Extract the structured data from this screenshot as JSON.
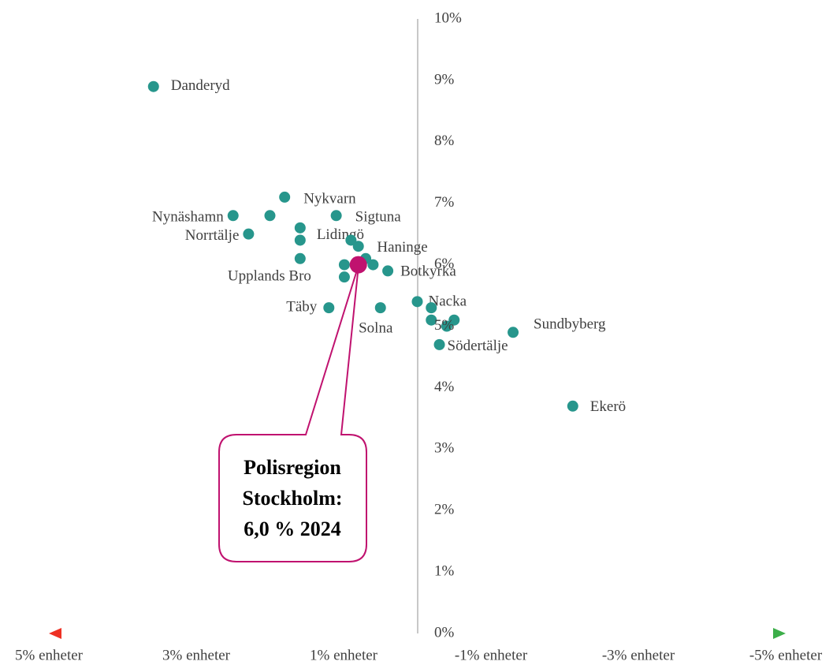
{
  "chart_data": {
    "type": "scatter",
    "names": [
      "Danderyd",
      "Nynäshamn",
      null,
      "Nykvarn",
      "Norrtälje",
      null,
      "Lidingö",
      "Sigtuna",
      null,
      "Haninge",
      null,
      null,
      "Upplands Bro",
      null,
      null,
      "Botkyrka",
      "Täby",
      "Solna",
      "Nacka",
      null,
      null,
      null,
      null,
      "Sundbyberg",
      "Södertälje",
      "Ekerö"
    ],
    "x": [
      3.58,
      2.5,
      2.0,
      1.8,
      2.29,
      1.59,
      1.59,
      1.1,
      0.8,
      0.9,
      1.59,
      0.99,
      0.99,
      0.7,
      0.6,
      0.4,
      1.2,
      0.5,
      0.0,
      -0.19,
      -0.19,
      -0.4,
      -0.5,
      -1.3,
      -0.3,
      -2.11
    ],
    "y": [
      8.9,
      6.8,
      6.8,
      7.1,
      6.5,
      6.6,
      6.4,
      6.8,
      6.3,
      6.4,
      6.1,
      6.0,
      5.8,
      6.1,
      6.0,
      5.9,
      5.3,
      5.3,
      5.4,
      5.3,
      5.1,
      5.0,
      5.1,
      4.9,
      4.7,
      3.7
    ],
    "color": "#27968c",
    "highlight": {
      "x": 0.8,
      "y": 6.0,
      "color": "#c0126f",
      "annotation": [
        "Polisregion",
        "Stockholm:",
        "6,0 % 2024"
      ]
    },
    "xlim": [
      5,
      -5
    ],
    "xticks": [
      {
        "value": 5,
        "label": "5% enheter"
      },
      {
        "value": 3,
        "label": "3% enheter"
      },
      {
        "value": 1,
        "label": "1% enheter"
      },
      {
        "value": -1,
        "label": "-1% enheter"
      },
      {
        "value": -3,
        "label": "-3% enheter"
      },
      {
        "value": -5,
        "label": "-5% enheter"
      }
    ],
    "ylim": [
      0,
      10
    ],
    "yticks": [
      {
        "value": 0,
        "label": "0%"
      },
      {
        "value": 1,
        "label": "1%"
      },
      {
        "value": 2,
        "label": "2%"
      },
      {
        "value": 3,
        "label": "3%"
      },
      {
        "value": 4,
        "label": "4%"
      },
      {
        "value": 5,
        "label": "5%"
      },
      {
        "value": 6,
        "label": "6%"
      },
      {
        "value": 7,
        "label": "7%"
      },
      {
        "value": 8,
        "label": "8%"
      },
      {
        "value": 9,
        "label": "9%"
      },
      {
        "value": 10,
        "label": "10%"
      }
    ]
  }
}
